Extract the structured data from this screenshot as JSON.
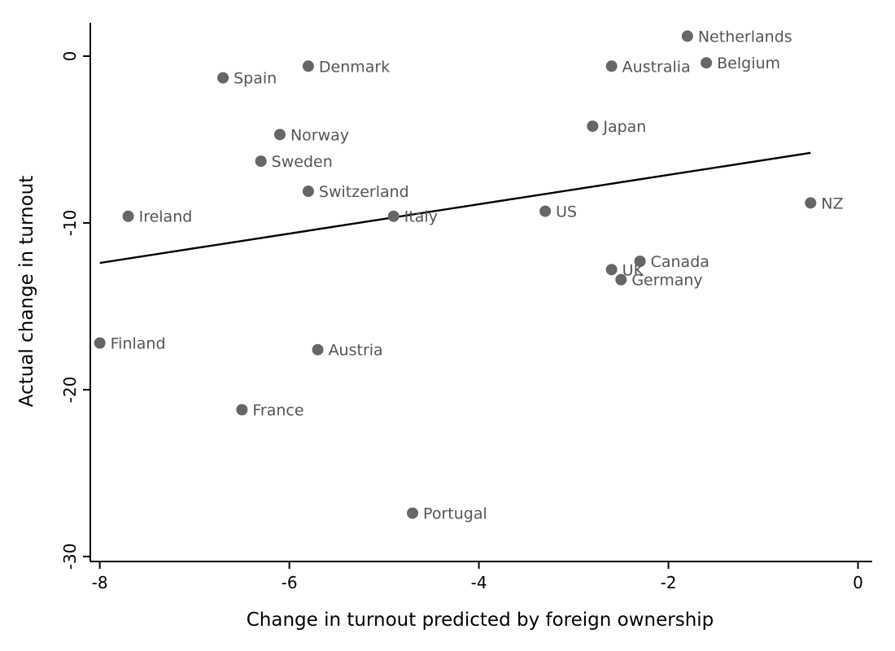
{
  "chart_data": {
    "type": "scatter",
    "title": "",
    "xlabel": "Change in turnout predicted by foreign ownership",
    "ylabel": "Actual change in turnout",
    "xlim": [
      -8.1,
      0.15
    ],
    "ylim": [
      -30.3,
      2.0
    ],
    "xticks": [
      -8,
      -6,
      -4,
      -2,
      0
    ],
    "yticks": [
      0,
      -10,
      -20,
      -30
    ],
    "xtick_labels": [
      "-8",
      "-6",
      "-4",
      "-2",
      "0"
    ],
    "ytick_labels": [
      "0",
      "-10",
      "-20",
      "-30"
    ],
    "grid": false,
    "legend": "none",
    "marker_color": "#666666",
    "label_color": "#555555",
    "points": [
      {
        "label": "Netherlands",
        "x": -1.8,
        "y": 1.2
      },
      {
        "label": "Belgium",
        "x": -1.6,
        "y": -0.4
      },
      {
        "label": "Denmark",
        "x": -5.8,
        "y": -0.6
      },
      {
        "label": "Australia",
        "x": -2.6,
        "y": -0.6
      },
      {
        "label": "Spain",
        "x": -6.7,
        "y": -1.3
      },
      {
        "label": "Japan",
        "x": -2.8,
        "y": -4.2
      },
      {
        "label": "Norway",
        "x": -6.1,
        "y": -4.7
      },
      {
        "label": "Sweden",
        "x": -6.3,
        "y": -6.3
      },
      {
        "label": "Switzerland",
        "x": -5.8,
        "y": -8.1
      },
      {
        "label": "NZ",
        "x": -0.5,
        "y": -8.8
      },
      {
        "label": "US",
        "x": -3.3,
        "y": -9.3
      },
      {
        "label": "Ireland",
        "x": -7.7,
        "y": -9.6
      },
      {
        "label": "Italy",
        "x": -4.9,
        "y": -9.6
      },
      {
        "label": "Canada",
        "x": -2.3,
        "y": -12.3
      },
      {
        "label": "UK",
        "x": -2.6,
        "y": -12.8
      },
      {
        "label": "Germany",
        "x": -2.5,
        "y": -13.4
      },
      {
        "label": "Finland",
        "x": -8.0,
        "y": -17.2
      },
      {
        "label": "Austria",
        "x": -5.7,
        "y": -17.6
      },
      {
        "label": "France",
        "x": -6.5,
        "y": -21.2
      },
      {
        "label": "Portugal",
        "x": -4.7,
        "y": -27.4
      }
    ],
    "fit_line": {
      "x": [
        -8.0,
        -0.5
      ],
      "y": [
        -12.4,
        -5.8
      ]
    }
  }
}
